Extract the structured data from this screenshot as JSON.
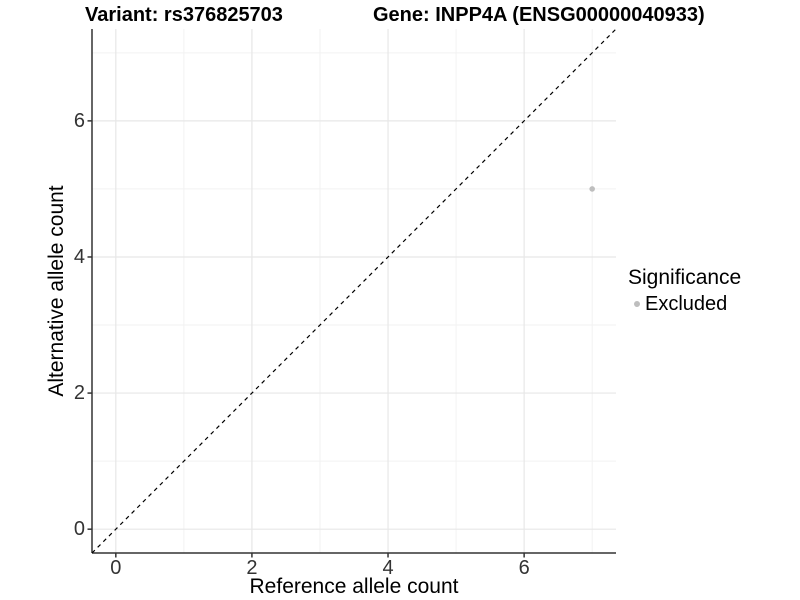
{
  "titles": {
    "variant": "Variant: rs376825703",
    "gene": "Gene: INPP4A (ENSG00000040933)"
  },
  "axes": {
    "x": {
      "label": "Reference allele count"
    },
    "y": {
      "label": "Alternative allele count"
    }
  },
  "legend": {
    "title": "Significance",
    "items": [
      {
        "label": "Excluded",
        "color": "#BEBEBE"
      }
    ]
  },
  "colors": {
    "point": "#BEBEBE",
    "axis_line": "#333333",
    "tick_mark": "#333333",
    "tick_text": "#333333",
    "grid_major": "#E7E7E7",
    "grid_minor": "#F2F2F2",
    "identity_line": "#000000",
    "background": "#FFFFFF"
  },
  "chart_data": {
    "type": "scatter",
    "title": "Variant: rs376825703 | Gene: INPP4A (ENSG00000040933)",
    "xlabel": "Reference allele count",
    "ylabel": "Alternative allele count",
    "xlim": [
      -0.35,
      7.35
    ],
    "ylim": [
      -0.35,
      7.35
    ],
    "x_major_ticks": [
      0,
      2,
      4,
      6
    ],
    "y_major_ticks": [
      0,
      2,
      4,
      6
    ],
    "x_minor_gridlines": [
      1,
      3,
      5,
      7
    ],
    "y_minor_gridlines": [
      1,
      3,
      5,
      7
    ],
    "grid": true,
    "legend_position": "right",
    "series": [
      {
        "name": "Excluded",
        "color": "#BEBEBE",
        "points": [
          {
            "x": 7,
            "y": 5
          }
        ]
      }
    ],
    "reference_line": {
      "kind": "identity",
      "style": "dashed",
      "x1": -0.35,
      "y1": -0.35,
      "x2": 7.35,
      "y2": 7.35
    }
  }
}
